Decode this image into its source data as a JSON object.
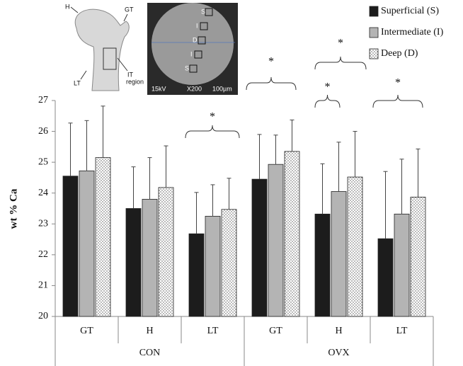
{
  "chart_data": {
    "type": "bar",
    "y_label": "wt % Ca",
    "categories": [
      "GT",
      "H",
      "LT",
      "GT",
      "H",
      "LT"
    ],
    "groups": [
      "CON",
      "OVX"
    ],
    "ylim": [
      20,
      27
    ],
    "yticks": [
      20,
      21,
      22,
      23,
      24,
      25,
      26,
      27
    ],
    "grid": false,
    "legend": "top-right",
    "series": [
      {
        "name": "Superficial (S)",
        "color": "#1c1c1c",
        "values": [
          24.55,
          23.5,
          22.68,
          24.45,
          23.32,
          22.52
        ],
        "errors": [
          1.72,
          1.35,
          1.34,
          1.45,
          1.63,
          2.18
        ]
      },
      {
        "name": "Intermediate (I)",
        "color": "#b4b4b4",
        "values": [
          24.72,
          23.8,
          23.25,
          24.93,
          24.05,
          23.32
        ],
        "errors": [
          1.63,
          1.35,
          1.02,
          0.95,
          1.6,
          1.78
        ]
      },
      {
        "name": "Deep (D)",
        "color": "#ffffff",
        "pattern": "dots",
        "values": [
          25.15,
          24.18,
          23.47,
          25.35,
          24.52,
          23.87
        ],
        "errors": [
          1.67,
          1.35,
          1.01,
          1.02,
          1.48,
          1.56
        ]
      }
    ],
    "annotations": [
      "*",
      "*",
      "*",
      "*",
      "*"
    ],
    "inset_labels": [
      "H",
      "GT",
      "LT",
      "IT",
      "region",
      "15kV",
      "X200",
      "100µm",
      "S",
      "I",
      "D",
      "I",
      "S"
    ]
  }
}
